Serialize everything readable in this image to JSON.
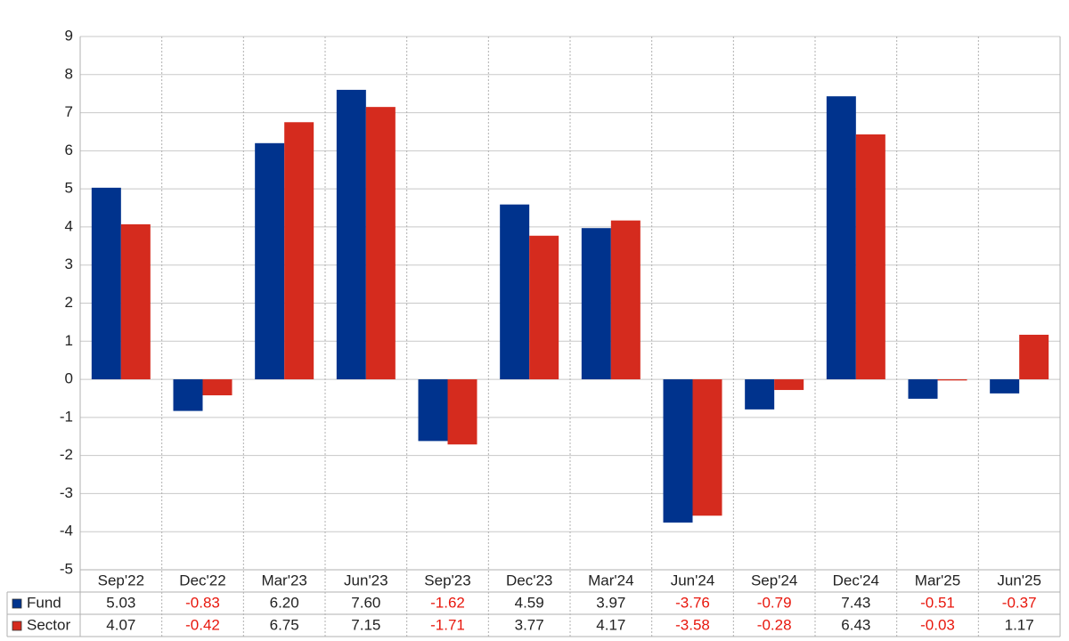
{
  "chart_data": {
    "type": "bar",
    "categories": [
      "Sep'22",
      "Dec'22",
      "Mar'23",
      "Jun'23",
      "Sep'23",
      "Dec'23",
      "Mar'24",
      "Jun'24",
      "Sep'24",
      "Dec'24",
      "Mar'25",
      "Jun'25"
    ],
    "series": [
      {
        "name": "Fund",
        "color": "#00338d",
        "values": [
          5.03,
          -0.83,
          6.2,
          7.6,
          -1.62,
          4.59,
          3.97,
          -3.76,
          -0.79,
          7.43,
          -0.51,
          -0.37
        ],
        "value_labels": [
          "5.03",
          "-0.83",
          "6.20",
          "7.60",
          "-1.62",
          "4.59",
          "3.97",
          "-3.76",
          "-0.79",
          "7.43",
          "-0.51",
          "-0.37"
        ]
      },
      {
        "name": "Sector",
        "color": "#d52b1e",
        "values": [
          4.07,
          -0.42,
          6.75,
          7.15,
          -1.71,
          3.77,
          4.17,
          -3.58,
          -0.28,
          6.43,
          -0.03,
          1.17
        ],
        "value_labels": [
          "4.07",
          "-0.42",
          "6.75",
          "7.15",
          "-1.71",
          "3.77",
          "4.17",
          "-3.58",
          "-0.28",
          "6.43",
          "-0.03",
          "1.17"
        ]
      }
    ],
    "ylim": [
      -5,
      9
    ],
    "yticks": [
      -5,
      -4,
      -3,
      -2,
      -1,
      0,
      1,
      2,
      3,
      4,
      5,
      6,
      7,
      8,
      9
    ],
    "grid": true
  }
}
